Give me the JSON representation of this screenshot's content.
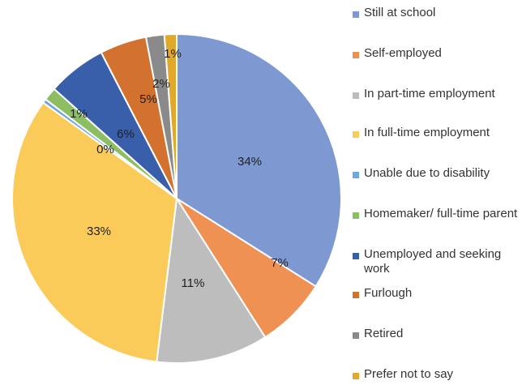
{
  "chart_data": {
    "type": "pie",
    "title": "",
    "slices": [
      {
        "label": "Still at school",
        "value": 34,
        "display": "34%",
        "color": "#7E98D2"
      },
      {
        "label": "Self-employed",
        "value": 7,
        "display": "7%",
        "color": "#EE9152"
      },
      {
        "label": "In part-time employment",
        "value": 11,
        "display": "11%",
        "color": "#BDBDBD"
      },
      {
        "label": "In full-time employment",
        "value": 33,
        "display": "33%",
        "color": "#FBCB5A"
      },
      {
        "label": "Unable due to disability",
        "value": 0.4,
        "display": "0%",
        "color": "#6FA8DC"
      },
      {
        "label": "Homemaker/ full-time parent",
        "value": 1.3,
        "display": "1%",
        "color": "#8DBE62"
      },
      {
        "label": "Unemployed and seeking work",
        "value": 5.8,
        "display": "6%",
        "color": "#3A5FAA"
      },
      {
        "label": "Furlough",
        "value": 4.6,
        "display": "5%",
        "color": "#D2722E"
      },
      {
        "label": "Retired",
        "value": 1.8,
        "display": "2%",
        "color": "#8A8A8A"
      },
      {
        "label": "Prefer not to say",
        "value": 1.2,
        "display": "1%",
        "color": "#E2A82A"
      }
    ],
    "start_angle_deg": 0,
    "direction": "clockwise",
    "legend_position": "right"
  }
}
